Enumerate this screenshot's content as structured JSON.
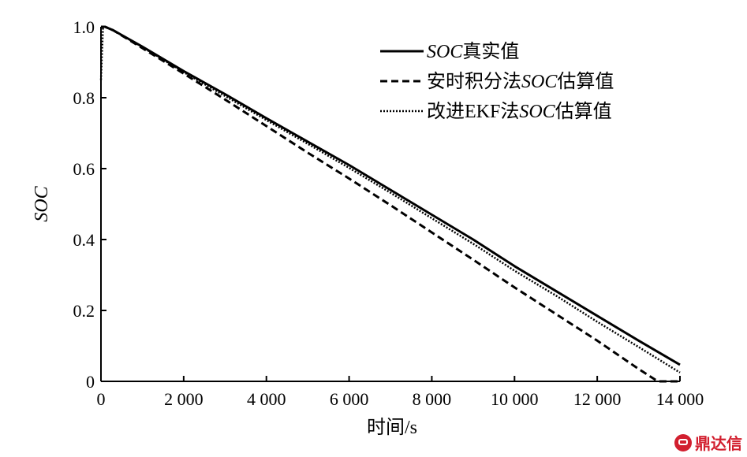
{
  "chart_data": {
    "type": "line",
    "title": "",
    "xlabel": "时间/s",
    "ylabel": "SOC",
    "xlim": [
      0,
      14000
    ],
    "ylim": [
      0,
      1.0
    ],
    "x_ticks": [
      {
        "value": 0,
        "label": "0"
      },
      {
        "value": 2000,
        "label": "2 000"
      },
      {
        "value": 4000,
        "label": "4 000"
      },
      {
        "value": 6000,
        "label": "6 000"
      },
      {
        "value": 8000,
        "label": "8 000"
      },
      {
        "value": 10000,
        "label": "10 000"
      },
      {
        "value": 12000,
        "label": "12 000"
      },
      {
        "value": 14000,
        "label": "14 000"
      }
    ],
    "y_ticks": [
      {
        "value": 0,
        "label": "0"
      },
      {
        "value": 0.2,
        "label": "0.2"
      },
      {
        "value": 0.4,
        "label": "0.4"
      },
      {
        "value": 0.6,
        "label": "0.6"
      },
      {
        "value": 0.8,
        "label": "0.8"
      },
      {
        "value": 1.0,
        "label": "1.0"
      }
    ],
    "grid": false,
    "legend_position": "top-right",
    "series": [
      {
        "name_italic": "SOC",
        "name_rest": "真实值",
        "line_style": "solid",
        "color": "#000000",
        "x": [
          0,
          100,
          300,
          1000,
          2000,
          3000,
          4000,
          5000,
          6000,
          7000,
          8000,
          9000,
          10000,
          11000,
          12000,
          13000,
          14000
        ],
        "y": [
          1.0,
          1.0,
          0.99,
          0.944,
          0.875,
          0.81,
          0.742,
          0.676,
          0.61,
          0.54,
          0.47,
          0.4,
          0.325,
          0.255,
          0.185,
          0.115,
          0.047
        ]
      },
      {
        "name_prefix": "安时积分法",
        "name_italic": "SOC",
        "name_rest": "估算值",
        "line_style": "dashed",
        "color": "#000000",
        "x": [
          0,
          100,
          300,
          1000,
          2000,
          3000,
          4000,
          5000,
          6000,
          7000,
          8000,
          9000,
          10000,
          11000,
          12000,
          13000,
          13400,
          13500,
          14000
        ],
        "y": [
          1.0,
          1.0,
          0.99,
          0.94,
          0.868,
          0.795,
          0.72,
          0.645,
          0.572,
          0.497,
          0.42,
          0.343,
          0.265,
          0.19,
          0.115,
          0.035,
          0.005,
          0.0,
          0.0
        ]
      },
      {
        "name_prefix": "改进EKF法",
        "name_italic": "SOC",
        "name_rest": "估算值",
        "line_style": "dotted",
        "color": "#000000",
        "x": [
          0,
          50,
          100,
          300,
          1000,
          2000,
          3000,
          4000,
          5000,
          6000,
          7000,
          8000,
          9000,
          10000,
          11000,
          12000,
          13000,
          14000
        ],
        "y": [
          0.85,
          1.0,
          1.0,
          0.99,
          0.943,
          0.872,
          0.805,
          0.737,
          0.67,
          0.602,
          0.532,
          0.46,
          0.388,
          0.312,
          0.242,
          0.168,
          0.097,
          0.025
        ]
      }
    ]
  },
  "watermark": {
    "text": "鼎达信",
    "color": "#d21f2f"
  }
}
